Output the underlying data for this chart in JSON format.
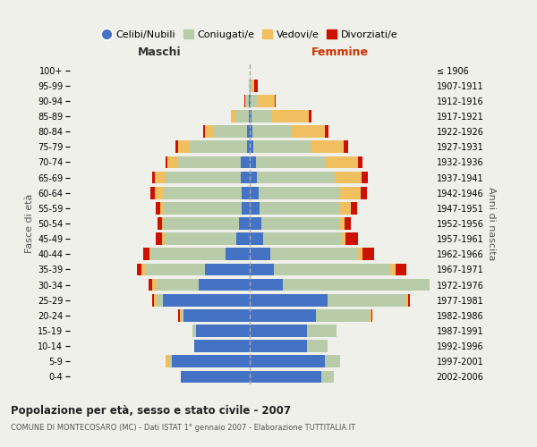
{
  "age_groups": [
    "0-4",
    "5-9",
    "10-14",
    "15-19",
    "20-24",
    "25-29",
    "30-34",
    "35-39",
    "40-44",
    "45-49",
    "50-54",
    "55-59",
    "60-64",
    "65-69",
    "70-74",
    "75-79",
    "80-84",
    "85-89",
    "90-94",
    "95-99",
    "100+"
  ],
  "birth_years": [
    "2002-2006",
    "1997-2001",
    "1992-1996",
    "1987-1991",
    "1982-1986",
    "1977-1981",
    "1972-1976",
    "1967-1971",
    "1962-1966",
    "1957-1961",
    "1952-1956",
    "1947-1951",
    "1942-1946",
    "1937-1941",
    "1932-1936",
    "1927-1931",
    "1922-1926",
    "1917-1921",
    "1912-1916",
    "1907-1911",
    "≤ 1906"
  ],
  "maschi": {
    "celibi": [
      115,
      130,
      92,
      90,
      110,
      145,
      85,
      75,
      40,
      22,
      18,
      14,
      14,
      15,
      15,
      5,
      5,
      2,
      1,
      0,
      0
    ],
    "coniugati": [
      0,
      5,
      0,
      5,
      5,
      10,
      70,
      100,
      125,
      120,
      125,
      130,
      130,
      125,
      105,
      95,
      55,
      20,
      5,
      2,
      0
    ],
    "vedovi": [
      0,
      5,
      0,
      0,
      2,
      5,
      8,
      5,
      2,
      5,
      3,
      5,
      14,
      18,
      18,
      20,
      15,
      10,
      2,
      0,
      0
    ],
    "divorziati": [
      0,
      0,
      0,
      0,
      2,
      3,
      5,
      8,
      10,
      10,
      7,
      7,
      7,
      4,
      3,
      4,
      3,
      0,
      1,
      0,
      0
    ]
  },
  "femmine": {
    "nubili": [
      120,
      125,
      95,
      95,
      110,
      130,
      55,
      40,
      35,
      22,
      20,
      16,
      15,
      12,
      10,
      6,
      5,
      3,
      2,
      0,
      0
    ],
    "coniugate": [
      20,
      25,
      35,
      50,
      90,
      130,
      250,
      195,
      145,
      130,
      130,
      135,
      135,
      130,
      115,
      95,
      65,
      35,
      10,
      3,
      0
    ],
    "vedove": [
      0,
      0,
      0,
      0,
      3,
      4,
      5,
      8,
      8,
      8,
      8,
      18,
      35,
      45,
      55,
      55,
      55,
      60,
      30,
      5,
      0
    ],
    "divorziate": [
      0,
      0,
      0,
      0,
      2,
      3,
      5,
      18,
      20,
      20,
      10,
      10,
      10,
      10,
      8,
      8,
      6,
      5,
      2,
      5,
      0
    ]
  },
  "colors": {
    "celibi": "#4472C4",
    "coniugati": "#b8ccaa",
    "vedovi": "#f0c060",
    "divorziati": "#cc1100"
  },
  "title": "Popolazione per età, sesso e stato civile - 2007",
  "subtitle": "COMUNE DI MONTECOSARO (MC) - Dati ISTAT 1° gennaio 2007 - Elaborazione TUTTITALIA.IT",
  "label_maschi": "Maschi",
  "label_femmine": "Femmine",
  "ylabel_left": "Fasce di età",
  "ylabel_right": "Anni di nascita",
  "xlim": 300,
  "legend_labels": [
    "Celibi/Nubili",
    "Coniugati/e",
    "Vedovi/e",
    "Divorziati/e"
  ]
}
